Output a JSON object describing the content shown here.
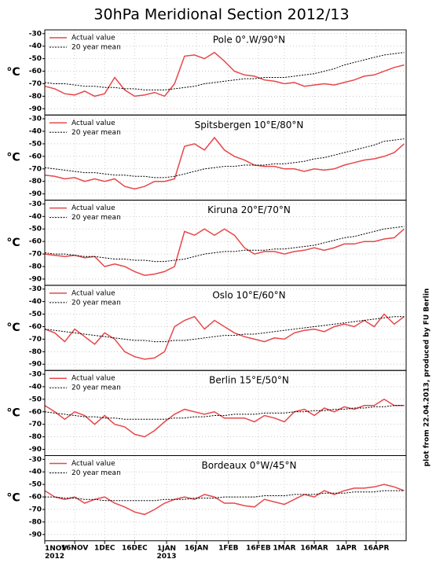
{
  "title": "30hPa Meridional Section 2012/13",
  "side_note": "plot from 22.04.2013, produced by FU Berlin",
  "x": [
    0,
    5,
    10,
    15,
    20,
    25,
    30,
    35,
    40,
    45,
    50,
    55,
    60,
    65,
    70,
    75,
    80,
    85,
    90,
    95,
    100,
    105,
    110,
    115,
    120,
    125,
    130,
    135,
    140,
    145,
    150,
    155,
    160,
    165,
    170,
    175,
    180
  ],
  "xlim": [
    0,
    181
  ],
  "xticks": [
    {
      "value": 0,
      "label": "1NOV 2012"
    },
    {
      "value": 15,
      "label": "16NOV"
    },
    {
      "value": 30,
      "label": "1DEC"
    },
    {
      "value": 45,
      "label": "16DEC"
    },
    {
      "value": 61,
      "label": "1JAN 2013"
    },
    {
      "value": 76,
      "label": "16JAN"
    },
    {
      "value": 92,
      "label": "1FEB"
    },
    {
      "value": 107,
      "label": "16FEB"
    },
    {
      "value": 120,
      "label": "1MAR"
    },
    {
      "value": 135,
      "label": "16MAR"
    },
    {
      "value": 151,
      "label": "1APR"
    },
    {
      "value": 166,
      "label": "16APR"
    }
  ],
  "chart_data": [
    {
      "type": "line",
      "title": "Pole 0°.W/90°N",
      "y_label": "°C",
      "ylim": [
        -95,
        -27
      ],
      "yticks": [
        -30,
        -40,
        -50,
        -60,
        -70,
        -80,
        -90
      ],
      "grid": true,
      "legend": "upper left",
      "series": [
        {
          "name": "Actual value",
          "color": "#e8474a",
          "style": "solid",
          "values": [
            -72,
            -74,
            -78,
            -79,
            -76,
            -80,
            -78,
            -65,
            -75,
            -80,
            -79,
            -77,
            -80,
            -70,
            -48,
            -47,
            -50,
            -45,
            -52,
            -60,
            -63,
            -64,
            -67,
            -68,
            -70,
            -69,
            -72,
            -71,
            -70,
            -71,
            -69,
            -67,
            -64,
            -63,
            -60,
            -57,
            -55
          ]
        },
        {
          "name": "20 year mean",
          "color": "#000000",
          "style": "dotted",
          "values": [
            -69,
            -70,
            -70,
            -71,
            -72,
            -72,
            -73,
            -73,
            -74,
            -74,
            -75,
            -75,
            -75,
            -74,
            -73,
            -72,
            -70,
            -69,
            -68,
            -67,
            -66,
            -66,
            -65,
            -65,
            -65,
            -64,
            -63,
            -62,
            -60,
            -58,
            -55,
            -53,
            -51,
            -49,
            -47,
            -46,
            -45
          ]
        }
      ]
    },
    {
      "type": "line",
      "title": "Spitsbergen 10°E/80°N",
      "y_label": "°C",
      "ylim": [
        -95,
        -27
      ],
      "yticks": [
        -30,
        -40,
        -50,
        -60,
        -70,
        -80,
        -90
      ],
      "grid": true,
      "legend": "upper left",
      "series": [
        {
          "name": "Actual value",
          "color": "#e8474a",
          "style": "solid",
          "values": [
            -75,
            -76,
            -78,
            -77,
            -80,
            -78,
            -80,
            -78,
            -84,
            -86,
            -84,
            -80,
            -80,
            -78,
            -52,
            -50,
            -55,
            -45,
            -55,
            -60,
            -63,
            -67,
            -68,
            -68,
            -70,
            -70,
            -72,
            -70,
            -71,
            -70,
            -67,
            -65,
            -63,
            -62,
            -60,
            -57,
            -50
          ]
        },
        {
          "name": "20 year mean",
          "color": "#000000",
          "style": "dotted",
          "values": [
            -69,
            -70,
            -71,
            -72,
            -73,
            -73,
            -74,
            -75,
            -75,
            -76,
            -76,
            -77,
            -77,
            -76,
            -74,
            -72,
            -70,
            -69,
            -68,
            -68,
            -67,
            -67,
            -67,
            -66,
            -66,
            -65,
            -64,
            -62,
            -61,
            -59,
            -57,
            -55,
            -53,
            -51,
            -48,
            -47,
            -46
          ]
        }
      ]
    },
    {
      "type": "line",
      "title": "Kiruna 20°E/70°N",
      "y_label": "°C",
      "ylim": [
        -95,
        -27
      ],
      "yticks": [
        -30,
        -40,
        -50,
        -60,
        -70,
        -80,
        -90
      ],
      "grid": true,
      "legend": "upper left",
      "series": [
        {
          "name": "Actual value",
          "color": "#e8474a",
          "style": "solid",
          "values": [
            -70,
            -71,
            -72,
            -71,
            -73,
            -72,
            -80,
            -78,
            -80,
            -84,
            -87,
            -86,
            -84,
            -80,
            -52,
            -55,
            -50,
            -55,
            -50,
            -55,
            -65,
            -70,
            -68,
            -68,
            -70,
            -68,
            -67,
            -65,
            -67,
            -65,
            -62,
            -62,
            -60,
            -60,
            -58,
            -57,
            -50
          ]
        },
        {
          "name": "20 year mean",
          "color": "#000000",
          "style": "dotted",
          "values": [
            -69,
            -70,
            -70,
            -71,
            -72,
            -72,
            -73,
            -74,
            -74,
            -75,
            -75,
            -76,
            -76,
            -75,
            -74,
            -72,
            -70,
            -69,
            -68,
            -68,
            -67,
            -67,
            -67,
            -66,
            -66,
            -65,
            -64,
            -63,
            -61,
            -59,
            -57,
            -56,
            -54,
            -52,
            -50,
            -49,
            -48
          ]
        }
      ]
    },
    {
      "type": "line",
      "title": "Oslo 10°E/60°N",
      "y_label": "°C",
      "ylim": [
        -95,
        -27
      ],
      "yticks": [
        -30,
        -40,
        -50,
        -60,
        -70,
        -80,
        -90
      ],
      "grid": true,
      "legend": "upper left",
      "series": [
        {
          "name": "Actual value",
          "color": "#e8474a",
          "style": "solid",
          "values": [
            -62,
            -65,
            -72,
            -62,
            -68,
            -74,
            -65,
            -70,
            -80,
            -84,
            -86,
            -85,
            -80,
            -60,
            -55,
            -52,
            -62,
            -55,
            -60,
            -65,
            -68,
            -70,
            -72,
            -69,
            -70,
            -65,
            -63,
            -62,
            -64,
            -60,
            -58,
            -60,
            -55,
            -60,
            -50,
            -58,
            -52
          ]
        },
        {
          "name": "20 year mean",
          "color": "#000000",
          "style": "dotted",
          "values": [
            -62,
            -63,
            -64,
            -65,
            -66,
            -67,
            -68,
            -69,
            -70,
            -71,
            -71,
            -72,
            -72,
            -71,
            -71,
            -70,
            -69,
            -68,
            -67,
            -67,
            -66,
            -66,
            -65,
            -64,
            -63,
            -62,
            -61,
            -60,
            -59,
            -58,
            -57,
            -56,
            -55,
            -54,
            -53,
            -52,
            -52
          ]
        }
      ]
    },
    {
      "type": "line",
      "title": "Berlin 15°E/50°N",
      "y_label": "°C",
      "ylim": [
        -95,
        -27
      ],
      "yticks": [
        -30,
        -40,
        -50,
        -60,
        -70,
        -80,
        -90
      ],
      "grid": true,
      "legend": "upper left",
      "series": [
        {
          "name": "Actual value",
          "color": "#e8474a",
          "style": "solid",
          "values": [
            -55,
            -60,
            -66,
            -60,
            -63,
            -70,
            -63,
            -70,
            -72,
            -78,
            -80,
            -75,
            -68,
            -62,
            -58,
            -60,
            -62,
            -60,
            -65,
            -65,
            -65,
            -68,
            -63,
            -65,
            -68,
            -60,
            -58,
            -63,
            -57,
            -60,
            -56,
            -58,
            -55,
            -55,
            -50,
            -55,
            -55
          ]
        },
        {
          "name": "20 year mean",
          "color": "#000000",
          "style": "dotted",
          "values": [
            -60,
            -61,
            -62,
            -63,
            -64,
            -64,
            -65,
            -65,
            -66,
            -66,
            -66,
            -66,
            -66,
            -65,
            -65,
            -64,
            -64,
            -63,
            -63,
            -62,
            -62,
            -62,
            -61,
            -61,
            -61,
            -60,
            -60,
            -59,
            -59,
            -58,
            -58,
            -57,
            -57,
            -56,
            -56,
            -55,
            -55
          ]
        }
      ]
    },
    {
      "type": "line",
      "title": "Bordeaux 0°W/45°N",
      "y_label": "°C",
      "ylim": [
        -95,
        -27
      ],
      "yticks": [
        -30,
        -40,
        -50,
        -60,
        -70,
        -80,
        -90
      ],
      "grid": true,
      "legend": "upper left",
      "series": [
        {
          "name": "Actual value",
          "color": "#e8474a",
          "style": "solid",
          "values": [
            -55,
            -60,
            -62,
            -60,
            -65,
            -62,
            -60,
            -65,
            -68,
            -72,
            -74,
            -70,
            -65,
            -62,
            -60,
            -62,
            -58,
            -60,
            -65,
            -65,
            -67,
            -68,
            -62,
            -64,
            -66,
            -62,
            -58,
            -60,
            -55,
            -58,
            -55,
            -53,
            -53,
            -52,
            -50,
            -52,
            -55
          ]
        },
        {
          "name": "20 year mean",
          "color": "#000000",
          "style": "dotted",
          "values": [
            -60,
            -60,
            -61,
            -61,
            -62,
            -62,
            -63,
            -63,
            -63,
            -63,
            -63,
            -63,
            -62,
            -62,
            -62,
            -61,
            -61,
            -61,
            -60,
            -60,
            -60,
            -60,
            -59,
            -59,
            -59,
            -58,
            -58,
            -58,
            -57,
            -57,
            -57,
            -56,
            -56,
            -56,
            -55,
            -55,
            -55
          ]
        }
      ]
    }
  ]
}
